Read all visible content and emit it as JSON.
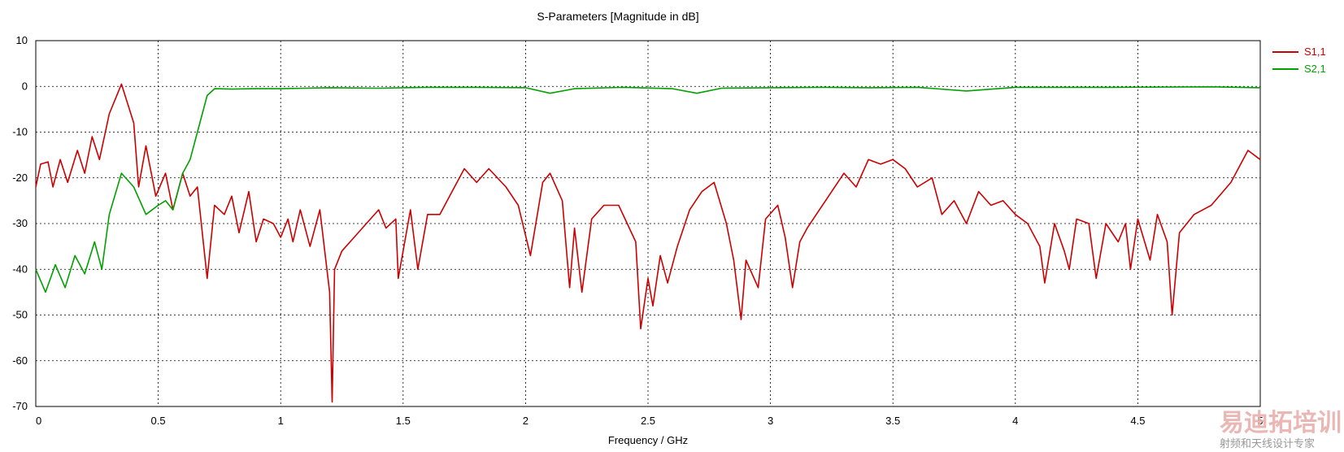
{
  "chart_data": {
    "type": "line",
    "title": "S-Parameters [Magnitude in dB]",
    "xlabel": "Frequency / GHz",
    "ylabel": "",
    "xlim": [
      0,
      5
    ],
    "ylim": [
      -70,
      10
    ],
    "xticks": [
      0,
      0.5,
      1,
      1.5,
      2,
      2.5,
      3,
      3.5,
      4,
      4.5,
      5
    ],
    "xtick_labels": [
      "0",
      "0.5",
      "1",
      "1.5",
      "2",
      "2.5",
      "3",
      "3.5",
      "4",
      "4.5",
      "5"
    ],
    "yticks": [
      10,
      0,
      -10,
      -20,
      -30,
      -40,
      -50,
      -60,
      -70
    ],
    "ytick_labels": [
      "10",
      "0",
      "-10",
      "-20",
      "-30",
      "-40",
      "-50",
      "-60",
      "-70"
    ],
    "grid": true,
    "legend_position": "top-right",
    "series": [
      {
        "name": "S1,1",
        "color": "#cc0000",
        "points": [
          [
            0,
            -22
          ],
          [
            0.02,
            -17
          ],
          [
            0.05,
            -16.5
          ],
          [
            0.07,
            -22
          ],
          [
            0.1,
            -16
          ],
          [
            0.13,
            -21
          ],
          [
            0.17,
            -14
          ],
          [
            0.2,
            -19
          ],
          [
            0.23,
            -11
          ],
          [
            0.26,
            -16
          ],
          [
            0.3,
            -6
          ],
          [
            0.35,
            0.5
          ],
          [
            0.4,
            -8
          ],
          [
            0.42,
            -22
          ],
          [
            0.45,
            -13
          ],
          [
            0.49,
            -24
          ],
          [
            0.53,
            -19
          ],
          [
            0.56,
            -27
          ],
          [
            0.6,
            -19
          ],
          [
            0.63,
            -24
          ],
          [
            0.66,
            -22
          ],
          [
            0.7,
            -42
          ],
          [
            0.73,
            -26
          ],
          [
            0.77,
            -28
          ],
          [
            0.8,
            -24
          ],
          [
            0.83,
            -32
          ],
          [
            0.87,
            -23
          ],
          [
            0.9,
            -34
          ],
          [
            0.93,
            -29
          ],
          [
            0.97,
            -30
          ],
          [
            1.0,
            -33
          ],
          [
            1.03,
            -29
          ],
          [
            1.05,
            -34
          ],
          [
            1.08,
            -27
          ],
          [
            1.12,
            -35
          ],
          [
            1.16,
            -27
          ],
          [
            1.2,
            -45
          ],
          [
            1.21,
            -69
          ],
          [
            1.22,
            -40
          ],
          [
            1.25,
            -36
          ],
          [
            1.3,
            -33
          ],
          [
            1.35,
            -30
          ],
          [
            1.4,
            -27
          ],
          [
            1.43,
            -31
          ],
          [
            1.47,
            -29
          ],
          [
            1.48,
            -42
          ],
          [
            1.53,
            -27
          ],
          [
            1.56,
            -40
          ],
          [
            1.6,
            -28
          ],
          [
            1.65,
            -28
          ],
          [
            1.7,
            -23
          ],
          [
            1.75,
            -18
          ],
          [
            1.8,
            -21
          ],
          [
            1.85,
            -18
          ],
          [
            1.92,
            -22
          ],
          [
            1.97,
            -26
          ],
          [
            2.02,
            -37
          ],
          [
            2.07,
            -21
          ],
          [
            2.1,
            -19
          ],
          [
            2.15,
            -25
          ],
          [
            2.18,
            -44
          ],
          [
            2.2,
            -31
          ],
          [
            2.23,
            -45
          ],
          [
            2.27,
            -29
          ],
          [
            2.32,
            -26
          ],
          [
            2.38,
            -26
          ],
          [
            2.45,
            -34
          ],
          [
            2.47,
            -53
          ],
          [
            2.5,
            -42
          ],
          [
            2.52,
            -48
          ],
          [
            2.55,
            -37
          ],
          [
            2.58,
            -43
          ],
          [
            2.62,
            -35
          ],
          [
            2.67,
            -27
          ],
          [
            2.72,
            -23
          ],
          [
            2.77,
            -21
          ],
          [
            2.82,
            -30
          ],
          [
            2.85,
            -38
          ],
          [
            2.88,
            -51
          ],
          [
            2.9,
            -38
          ],
          [
            2.95,
            -44
          ],
          [
            2.98,
            -29
          ],
          [
            3.03,
            -26
          ],
          [
            3.06,
            -33
          ],
          [
            3.09,
            -44
          ],
          [
            3.12,
            -34
          ],
          [
            3.15,
            -31
          ],
          [
            3.2,
            -27
          ],
          [
            3.25,
            -23
          ],
          [
            3.3,
            -19
          ],
          [
            3.35,
            -22
          ],
          [
            3.4,
            -16
          ],
          [
            3.45,
            -17
          ],
          [
            3.5,
            -16
          ],
          [
            3.55,
            -18
          ],
          [
            3.6,
            -22
          ],
          [
            3.66,
            -20
          ],
          [
            3.7,
            -28
          ],
          [
            3.75,
            -25
          ],
          [
            3.8,
            -30
          ],
          [
            3.85,
            -23
          ],
          [
            3.9,
            -26
          ],
          [
            3.95,
            -25
          ],
          [
            4.0,
            -28
          ],
          [
            4.05,
            -30
          ],
          [
            4.1,
            -35
          ],
          [
            4.12,
            -43
          ],
          [
            4.16,
            -30
          ],
          [
            4.2,
            -36
          ],
          [
            4.22,
            -40
          ],
          [
            4.25,
            -29
          ],
          [
            4.3,
            -30
          ],
          [
            4.33,
            -42
          ],
          [
            4.37,
            -30
          ],
          [
            4.42,
            -34
          ],
          [
            4.45,
            -30
          ],
          [
            4.47,
            -40
          ],
          [
            4.5,
            -29
          ],
          [
            4.55,
            -38
          ],
          [
            4.58,
            -28
          ],
          [
            4.62,
            -34
          ],
          [
            4.64,
            -50
          ],
          [
            4.67,
            -32
          ],
          [
            4.73,
            -28
          ],
          [
            4.8,
            -26
          ],
          [
            4.88,
            -21
          ],
          [
            4.95,
            -14
          ],
          [
            5.0,
            -16
          ]
        ]
      },
      {
        "name": "S2,1",
        "color": "#00a000",
        "points": [
          [
            0,
            -40
          ],
          [
            0.04,
            -45
          ],
          [
            0.08,
            -39
          ],
          [
            0.12,
            -44
          ],
          [
            0.16,
            -37
          ],
          [
            0.2,
            -41
          ],
          [
            0.24,
            -34
          ],
          [
            0.27,
            -40
          ],
          [
            0.3,
            -28
          ],
          [
            0.35,
            -19
          ],
          [
            0.4,
            -22
          ],
          [
            0.45,
            -28
          ],
          [
            0.5,
            -26
          ],
          [
            0.53,
            -25
          ],
          [
            0.56,
            -27
          ],
          [
            0.6,
            -19
          ],
          [
            0.63,
            -16
          ],
          [
            0.66,
            -10
          ],
          [
            0.7,
            -2
          ],
          [
            0.73,
            -0.5
          ],
          [
            0.8,
            -0.6
          ],
          [
            0.9,
            -0.5
          ],
          [
            1.0,
            -0.5
          ],
          [
            1.2,
            -0.3
          ],
          [
            1.4,
            -0.4
          ],
          [
            1.6,
            -0.2
          ],
          [
            1.8,
            -0.2
          ],
          [
            2.0,
            -0.3
          ],
          [
            2.1,
            -1.5
          ],
          [
            2.2,
            -0.5
          ],
          [
            2.4,
            -0.2
          ],
          [
            2.6,
            -0.5
          ],
          [
            2.7,
            -1.5
          ],
          [
            2.8,
            -0.4
          ],
          [
            3.0,
            -0.3
          ],
          [
            3.2,
            -0.2
          ],
          [
            3.4,
            -0.3
          ],
          [
            3.6,
            -0.2
          ],
          [
            3.8,
            -1.0
          ],
          [
            4.0,
            -0.2
          ],
          [
            4.4,
            -0.2
          ],
          [
            4.8,
            -0.1
          ],
          [
            5.0,
            -0.3
          ]
        ]
      }
    ]
  },
  "watermark": {
    "title": "易迪拓培训",
    "subtitle": "射频和天线设计专家"
  }
}
